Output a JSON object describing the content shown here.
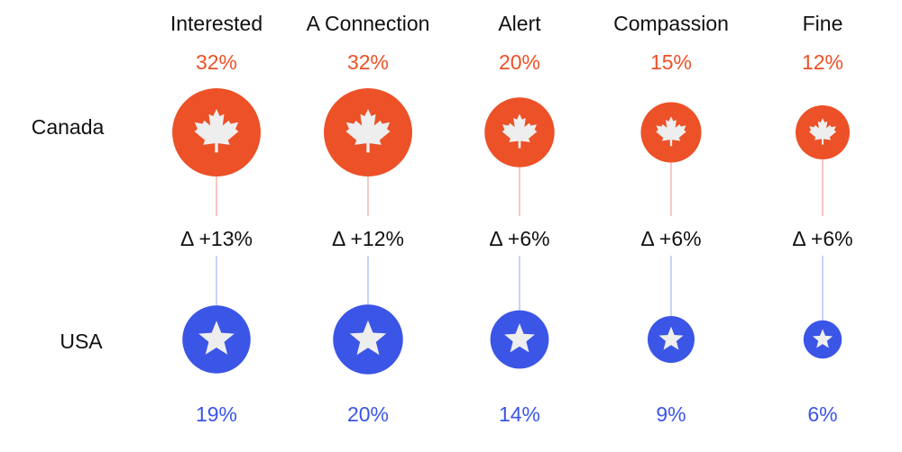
{
  "colors": {
    "canada": "#ec5127",
    "usa": "#3b55e6",
    "canada_connector": "#f4a39a",
    "usa_connector": "#a7b3ef",
    "icon": "#eeeeee"
  },
  "icons": {
    "canada": "maple-leaf-icon",
    "usa": "star-icon"
  },
  "chart_data": {
    "type": "bubble-comparison",
    "categories": [
      "Interested",
      "A Connection",
      "Alert",
      "Compassion",
      "Fine"
    ],
    "series": [
      {
        "name": "Canada",
        "values": [
          32,
          32,
          20,
          15,
          12
        ],
        "labels": [
          "32%",
          "32%",
          "20%",
          "15%",
          "12%"
        ]
      },
      {
        "name": "USA",
        "values": [
          19,
          20,
          14,
          9,
          6
        ],
        "labels": [
          "19%",
          "20%",
          "14%",
          "9%",
          "6%"
        ]
      }
    ],
    "deltas": [
      "Δ +13%",
      "Δ +12%",
      "Δ +6%",
      "Δ +6%",
      "Δ +6%"
    ]
  }
}
